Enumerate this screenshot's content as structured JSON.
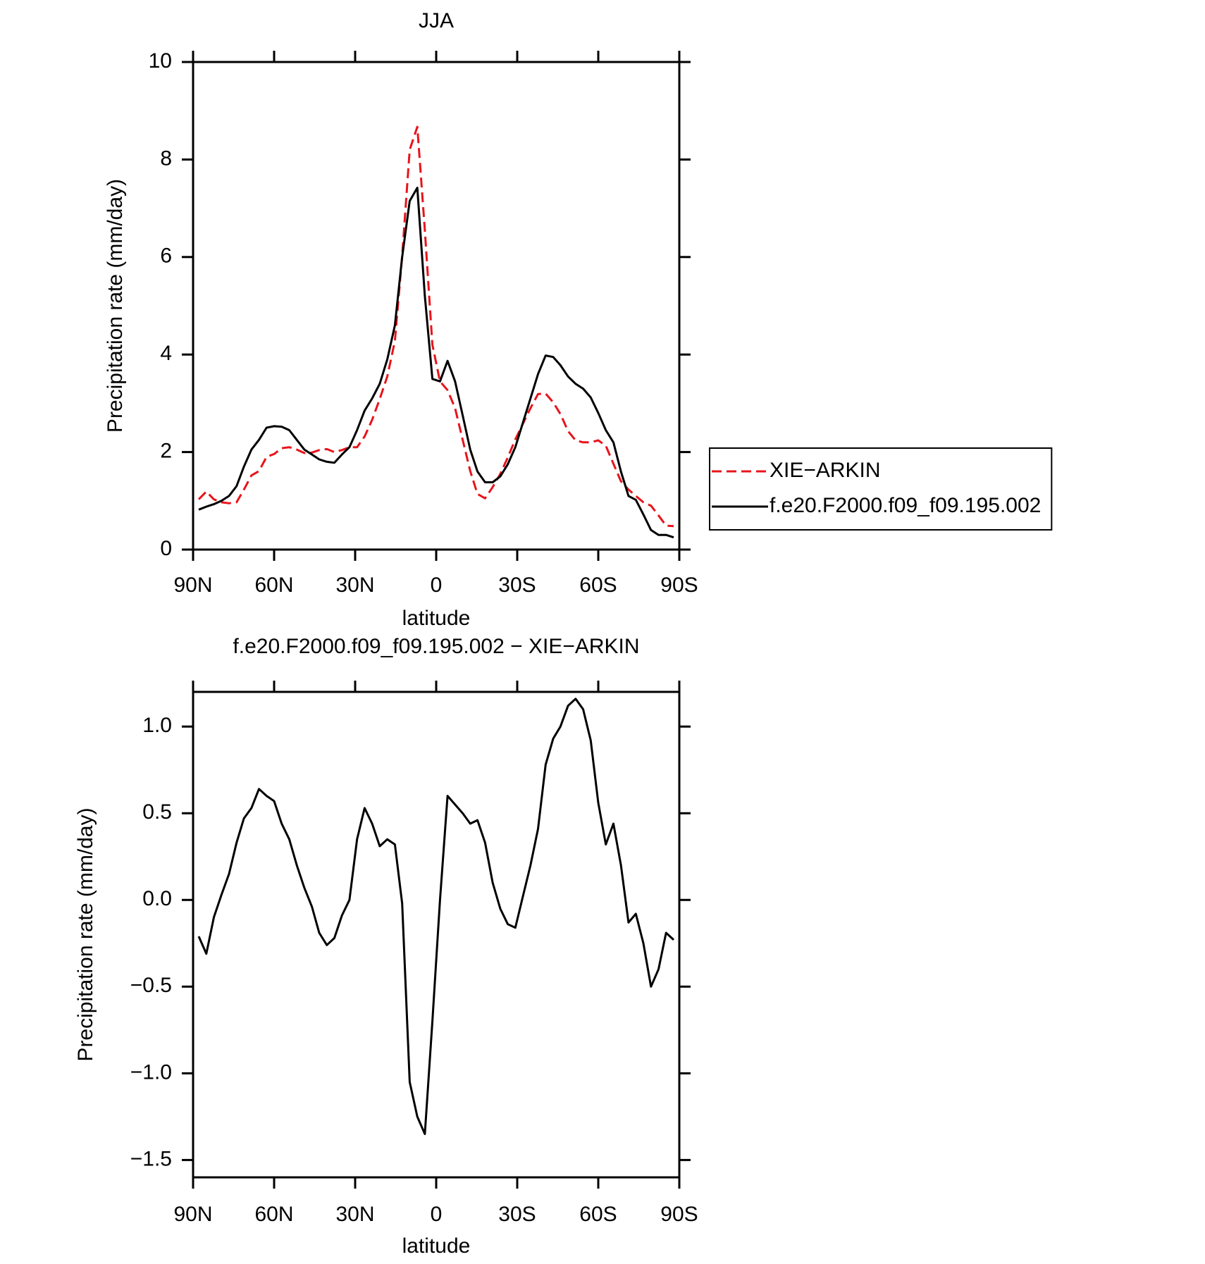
{
  "chart_data": [
    {
      "type": "line",
      "title": "JJA",
      "x_label": "latitude",
      "y_label": "Precipitation rate (mm/day)",
      "x": [
        87.9,
        85.1,
        82.3,
        79.5,
        76.7,
        73.9,
        71.2,
        68.4,
        65.6,
        62.8,
        60.0,
        57.2,
        54.4,
        51.6,
        48.8,
        46.0,
        43.3,
        40.5,
        37.7,
        34.9,
        32.1,
        29.3,
        26.5,
        23.7,
        20.9,
        18.1,
        15.3,
        12.6,
        9.8,
        7.0,
        4.2,
        1.4,
        -1.4,
        -4.2,
        -7.0,
        -9.8,
        -12.6,
        -15.3,
        -18.1,
        -20.9,
        -23.7,
        -26.5,
        -29.3,
        -32.1,
        -34.9,
        -37.7,
        -40.5,
        -43.3,
        -46.0,
        -48.8,
        -51.6,
        -54.4,
        -57.2,
        -60.0,
        -62.8,
        -65.6,
        -68.4,
        -71.2,
        -73.9,
        -76.7,
        -79.5,
        -82.3,
        -85.1,
        -87.9
      ],
      "series": [
        {
          "name": "XIE−ARKIN",
          "color": "#e8141b",
          "line_style": "dashed",
          "values": [
            1.03,
            1.19,
            1.03,
            0.97,
            0.95,
            0.97,
            1.23,
            1.52,
            1.61,
            1.9,
            1.96,
            2.08,
            2.1,
            2.05,
            1.98,
            1.99,
            2.04,
            2.06,
            2.0,
            2.04,
            2.1,
            2.1,
            2.32,
            2.66,
            3.09,
            3.55,
            4.28,
            6.02,
            8.2,
            8.67,
            6.55,
            4.2,
            3.45,
            3.27,
            2.9,
            2.25,
            1.61,
            1.14,
            1.05,
            1.28,
            1.55,
            1.89,
            2.26,
            2.58,
            2.9,
            3.19,
            3.2,
            3.02,
            2.78,
            2.43,
            2.24,
            2.2,
            2.2,
            2.24,
            2.13,
            1.76,
            1.4,
            1.23,
            1.1,
            0.97,
            0.9,
            0.7,
            0.49,
            0.48
          ]
        },
        {
          "name": "f.e20.F2000.f09_f09.195.002",
          "color": "#000000",
          "line_style": "solid",
          "values": [
            0.82,
            0.88,
            0.93,
            1.0,
            1.1,
            1.3,
            1.7,
            2.05,
            2.25,
            2.5,
            2.53,
            2.52,
            2.45,
            2.25,
            2.05,
            1.95,
            1.85,
            1.8,
            1.78,
            1.95,
            2.1,
            2.45,
            2.85,
            3.1,
            3.4,
            3.9,
            4.6,
            6.0,
            7.15,
            7.42,
            5.2,
            3.5,
            3.45,
            3.87,
            3.45,
            2.75,
            2.05,
            1.6,
            1.38,
            1.38,
            1.5,
            1.75,
            2.1,
            2.6,
            3.1,
            3.6,
            3.98,
            3.95,
            3.78,
            3.55,
            3.4,
            3.3,
            3.12,
            2.8,
            2.45,
            2.2,
            1.6,
            1.1,
            1.02,
            0.72,
            0.4,
            0.3,
            0.3,
            0.25
          ]
        }
      ],
      "xlim": [
        90,
        -90
      ],
      "xticks": [
        {
          "value": 90,
          "label": "90N"
        },
        {
          "value": 60,
          "label": "60N"
        },
        {
          "value": 30,
          "label": "30N"
        },
        0,
        {
          "value": -30,
          "label": "30S"
        },
        {
          "value": -60,
          "label": "60S"
        },
        {
          "value": -90,
          "label": "90S"
        }
      ],
      "ylim": [
        0,
        10
      ],
      "yticks": [
        0,
        2,
        4,
        6,
        8,
        10
      ],
      "legend_position": "right",
      "grid": false
    },
    {
      "type": "line",
      "title": "f.e20.F2000.f09_f09.195.002 − XIE−ARKIN",
      "x_label": "latitude",
      "y_label": "Precipitation rate (mm/day)",
      "x": [
        87.9,
        85.1,
        82.3,
        79.5,
        76.7,
        73.9,
        71.2,
        68.4,
        65.6,
        62.8,
        60.0,
        57.2,
        54.4,
        51.6,
        48.8,
        46.0,
        43.3,
        40.5,
        37.7,
        34.9,
        32.1,
        29.3,
        26.5,
        23.7,
        20.9,
        18.1,
        15.3,
        12.6,
        9.8,
        7.0,
        4.2,
        1.4,
        -1.4,
        -4.2,
        -7.0,
        -9.8,
        -12.6,
        -15.3,
        -18.1,
        -20.9,
        -23.7,
        -26.5,
        -29.3,
        -32.1,
        -34.9,
        -37.7,
        -40.5,
        -43.3,
        -46.0,
        -48.8,
        -51.6,
        -54.4,
        -57.2,
        -60.0,
        -62.8,
        -65.6,
        -68.4,
        -71.2,
        -73.9,
        -76.7,
        -79.5,
        -82.3,
        -85.1,
        -87.9
      ],
      "color": "#000000",
      "values": [
        -0.21,
        -0.31,
        -0.1,
        0.03,
        0.15,
        0.33,
        0.47,
        0.53,
        0.64,
        0.6,
        0.57,
        0.44,
        0.35,
        0.2,
        0.07,
        -0.04,
        -0.19,
        -0.26,
        -0.22,
        -0.09,
        0,
        0.35,
        0.53,
        0.44,
        0.31,
        0.35,
        0.32,
        -0.02,
        -1.05,
        -1.25,
        -1.35,
        -0.7,
        0.0,
        0.6,
        0.55,
        0.5,
        0.44,
        0.46,
        0.33,
        0.1,
        -0.05,
        -0.14,
        -0.16,
        0.02,
        0.2,
        0.41,
        0.78,
        0.93,
        1.0,
        1.12,
        1.16,
        1.1,
        0.92,
        0.56,
        0.32,
        0.44,
        0.2,
        -0.13,
        -0.08,
        -0.25,
        -0.5,
        -0.4,
        -0.19,
        -0.23
      ],
      "xlim": [
        90,
        -90
      ],
      "xticks": [
        {
          "value": 90,
          "label": "90N"
        },
        {
          "value": 60,
          "label": "60N"
        },
        {
          "value": 30,
          "label": "30N"
        },
        0,
        {
          "value": -30,
          "label": "30S"
        },
        {
          "value": -60,
          "label": "60S"
        },
        {
          "value": -90,
          "label": "90S"
        }
      ],
      "ylim": [
        -1.6,
        1.2
      ],
      "yticks": [
        {
          "value": -1.5,
          "label": "−1.5"
        },
        {
          "value": -1.0,
          "label": "−1.0"
        },
        {
          "value": -0.5,
          "label": "−0.5"
        },
        {
          "value": 0,
          "label": "0.0"
        },
        0.5,
        {
          "value": 1.0,
          "label": "1.0"
        }
      ],
      "grid": false
    }
  ]
}
